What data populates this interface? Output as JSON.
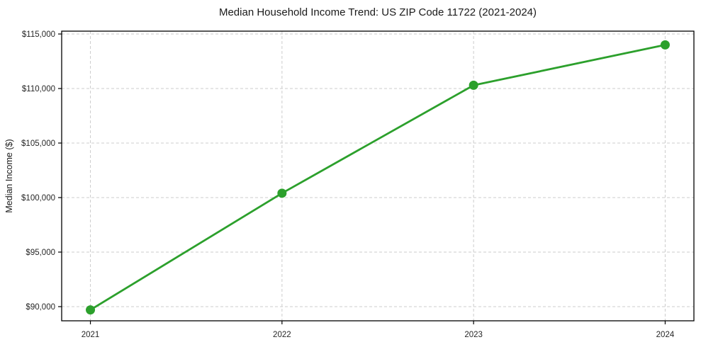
{
  "figure": {
    "title": "Median Household Income Trend: US ZIP Code 11722 (2021-2024)"
  },
  "chart_data": {
    "type": "line",
    "title": "Median Household Income Trend: US ZIP Code 11722 (2021-2024)",
    "xlabel": "",
    "ylabel": "Median Income ($)",
    "x": [
      2021,
      2022,
      2023,
      2024
    ],
    "x_tick_labels": [
      "2021",
      "2022",
      "2023",
      "2024"
    ],
    "series": [
      {
        "name": "Median Household Income",
        "values": [
          89700,
          100400,
          110300,
          114000
        ],
        "color": "#2ca02c",
        "marker": "circle"
      }
    ],
    "y_ticks": [
      90000,
      95000,
      100000,
      105000,
      110000,
      115000
    ],
    "y_tick_labels": [
      "$90,000",
      "$95,000",
      "$100,000",
      "$105,000",
      "$110,000",
      "$115,000"
    ],
    "xlim": [
      2020.85,
      2024.15
    ],
    "ylim": [
      88700,
      115260
    ],
    "grid": true,
    "grid_style": "dashed",
    "legend_position": "none",
    "colors": {
      "line": "#2ca02c",
      "grid": "#cccccc",
      "spine": "#000000",
      "text": "#1a1a1a",
      "background": "#ffffff"
    }
  }
}
